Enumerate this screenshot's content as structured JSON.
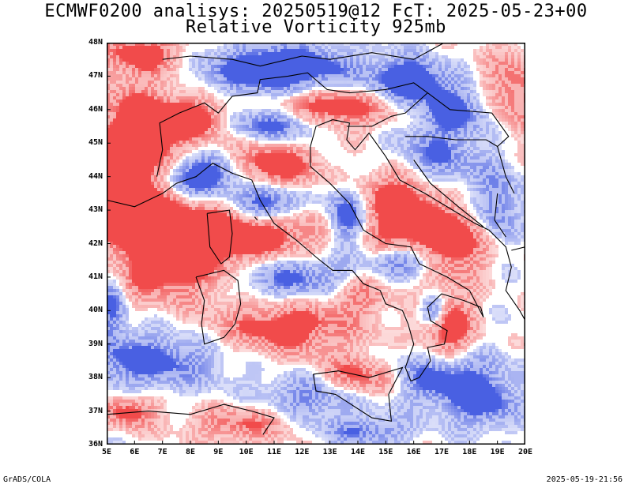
{
  "header": {
    "title_line1": "ECMWF0200 analisys: 20250519@12 FcT: 2025-05-23+00",
    "title_line2": "Relative Vorticity 925mb"
  },
  "map": {
    "lat_labels": [
      "48N",
      "47N",
      "46N",
      "45N",
      "44N",
      "43N",
      "42N",
      "41N",
      "40N",
      "39N",
      "38N",
      "37N",
      "36N"
    ],
    "lon_labels": [
      "5E",
      "6E",
      "7E",
      "8E",
      "9E",
      "10E",
      "11E",
      "12E",
      "13E",
      "14E",
      "15E",
      "16E",
      "17E",
      "18E",
      "19E",
      "20E"
    ],
    "lat_range": [
      36,
      48
    ],
    "lon_range": [
      5,
      20
    ],
    "colors": {
      "positive_vorticity": "#f03c3c",
      "negative_vorticity": "#3a52e0",
      "coastline": "#000000",
      "background": "#ffffff"
    }
  },
  "footer": {
    "left": "GrADS/COLA",
    "right": "2025-05-19-21:56"
  }
}
